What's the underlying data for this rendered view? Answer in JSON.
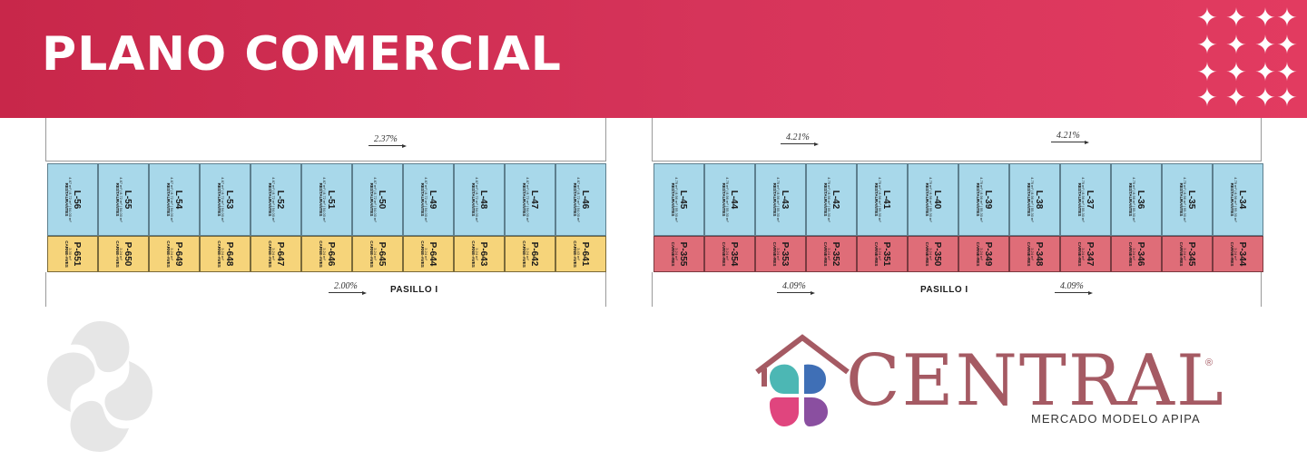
{
  "banner": {
    "title": "PLANO COMERCIAL",
    "bg_start": "#c8274a",
    "bg_end": "#e23b60"
  },
  "plan_left": {
    "top_slope": "2.37%",
    "bottom_slope": "2.00%",
    "aisle": "PASILLO I",
    "locales": [
      {
        "code": "L-56",
        "sub": "4.67 m² | 8.72 m² | 54.00 m²",
        "cat": "RESTAURANTES"
      },
      {
        "code": "L-55",
        "sub": "4.67 m² | 8.72 m² | 54.00 m²",
        "cat": "RESTAURANTES"
      },
      {
        "code": "L-54",
        "sub": "4.67 m² | 8.72 m² | 54.00 m²",
        "cat": "RESTAURANTES"
      },
      {
        "code": "L-53",
        "sub": "4.67 m² | 8.72 m² | 54.00 m²",
        "cat": "RESTAURANTES"
      },
      {
        "code": "L-52",
        "sub": "4.67 m² | 8.72 m² | 54.00 m²",
        "cat": "RESTAURANTES"
      },
      {
        "code": "L-51",
        "sub": "4.67 m² | 8.72 m² | 54.00 m²",
        "cat": "RESTAURANTES"
      },
      {
        "code": "L-50",
        "sub": "4.67 m² | 8.72 m² | 54.00 m²",
        "cat": "RESTAURANTES"
      },
      {
        "code": "L-49",
        "sub": "4.67 m² | 8.72 m² | 54.00 m²",
        "cat": "RESTAURANTES"
      },
      {
        "code": "L-48",
        "sub": "4.67 m² | 8.72 m² | 54.00 m²",
        "cat": "RESTAURANTES"
      },
      {
        "code": "L-47",
        "sub": "4.67 m² | 8.72 m² | 54.00 m²",
        "cat": "RESTAURANTES"
      },
      {
        "code": "L-46",
        "sub": "4.67 m² | 8.72 m² | 54.00 m²",
        "cat": "RESTAURANTES"
      }
    ],
    "puestos": [
      {
        "code": "P-651",
        "sub": "3.30 m²",
        "cat": "CARNE-AVES"
      },
      {
        "code": "P-650",
        "sub": "3.24 m²",
        "cat": "CARNE-AVES"
      },
      {
        "code": "P-649",
        "sub": "3.24 m²",
        "cat": "CARNE-AVES"
      },
      {
        "code": "P-648",
        "sub": "3.24 m²",
        "cat": "CARNE-AVES"
      },
      {
        "code": "P-647",
        "sub": "3.24 m²",
        "cat": "CARNE-AVES"
      },
      {
        "code": "P-646",
        "sub": "3.24 m²",
        "cat": "CARNE-AVES"
      },
      {
        "code": "P-645",
        "sub": "3.24 m²",
        "cat": "CARNE-AVES"
      },
      {
        "code": "P-644",
        "sub": "3.24 m²",
        "cat": "CARNE-AVES"
      },
      {
        "code": "P-643",
        "sub": "3.24 m²",
        "cat": "CARNE-AVES"
      },
      {
        "code": "P-642",
        "sub": "3.24 m²",
        "cat": "CARNE-AVES"
      },
      {
        "code": "P-641",
        "sub": "3.43 m²",
        "cat": "CARNE-AVES"
      }
    ]
  },
  "plan_right": {
    "top_slope_a": "4.21%",
    "top_slope_b": "4.21%",
    "bottom_slope_a": "4.09%",
    "bottom_slope_b": "4.09%",
    "aisle": "PASILLO I",
    "locales": [
      {
        "code": "L-45",
        "sub": "4.79 m² | 8.96 m² | 55.30 m²",
        "cat": "RESTAURANTES"
      },
      {
        "code": "L-44",
        "sub": "4.79 m² | 8.96 m² | 55.30 m²",
        "cat": "RESTAURANTES"
      },
      {
        "code": "L-43",
        "sub": "4.79 m² | 8.96 m² | 55.30 m²",
        "cat": "RESTAURANTES"
      },
      {
        "code": "L-42",
        "sub": "4.79 m² | 8.96 m² | 55.30 m²",
        "cat": "RESTAURANTES"
      },
      {
        "code": "L-41",
        "sub": "4.79 m² | 8.96 m² | 55.30 m²",
        "cat": "RESTAURANTES"
      },
      {
        "code": "L-40",
        "sub": "4.79 m² | 8.96 m² | 55.30 m²",
        "cat": "RESTAURANTES"
      },
      {
        "code": "L-39",
        "sub": "4.79 m² | 8.96 m² | 55.30 m²",
        "cat": "RESTAURANTES"
      },
      {
        "code": "L-38",
        "sub": "4.79 m² | 8.96 m² | 55.30 m²",
        "cat": "RESTAURANTES"
      },
      {
        "code": "L-37",
        "sub": "4.79 m² | 8.96 m² | 55.30 m²",
        "cat": "RESTAURANTES"
      },
      {
        "code": "L-36",
        "sub": "4.79 m² | 8.96 m² | 55.30 m²",
        "cat": "RESTAURANTES"
      },
      {
        "code": "L-35",
        "sub": "4.79 m² | 8.96 m² | 55.30 m²",
        "cat": "RESTAURANTES"
      },
      {
        "code": "L-34",
        "sub": "4.79 m² | 8.96 m² | 55.30 m²",
        "cat": "RESTAURANTES"
      }
    ],
    "puestos": [
      {
        "code": "P-355",
        "sub": "3.24 m²",
        "cat": "CARNE-RES"
      },
      {
        "code": "P-354",
        "sub": "3.24 m²",
        "cat": "CARNE-RES"
      },
      {
        "code": "P-353",
        "sub": "3.24 m²",
        "cat": "CARNE-RES"
      },
      {
        "code": "P-352",
        "sub": "3.24 m²",
        "cat": "CARNE-RES"
      },
      {
        "code": "P-351",
        "sub": "3.24 m²",
        "cat": "CARNE-RES"
      },
      {
        "code": "P-350",
        "sub": "3.24 m²",
        "cat": "CARNE-RES"
      },
      {
        "code": "P-349",
        "sub": "3.24 m²",
        "cat": "CARNE-RES"
      },
      {
        "code": "P-348",
        "sub": "3.24 m²",
        "cat": "CARNE-RES"
      },
      {
        "code": "P-347",
        "sub": "3.24 m²",
        "cat": "CARNE-RES"
      },
      {
        "code": "P-346",
        "sub": "3.24 m²",
        "cat": "CARNE-RES"
      },
      {
        "code": "P-345",
        "sub": "3.24 m²",
        "cat": "CARNE-RES"
      },
      {
        "code": "P-344",
        "sub": "3.24 m²",
        "cat": "CARNE-RES"
      }
    ]
  },
  "brand": {
    "name": "CENTRAL",
    "tagline": "MERCADO MODELO APIPA",
    "registered": "®",
    "color": "#a55a63"
  },
  "colors": {
    "locale_fill": "#a8d8ea",
    "puesto_yellow": "#f6d47a",
    "puesto_red": "#df6d78"
  },
  "icons": {
    "sparkles": "sparkle-icon",
    "watermark": "petal-logo-icon",
    "brand_mark": "house-logo-icon"
  }
}
